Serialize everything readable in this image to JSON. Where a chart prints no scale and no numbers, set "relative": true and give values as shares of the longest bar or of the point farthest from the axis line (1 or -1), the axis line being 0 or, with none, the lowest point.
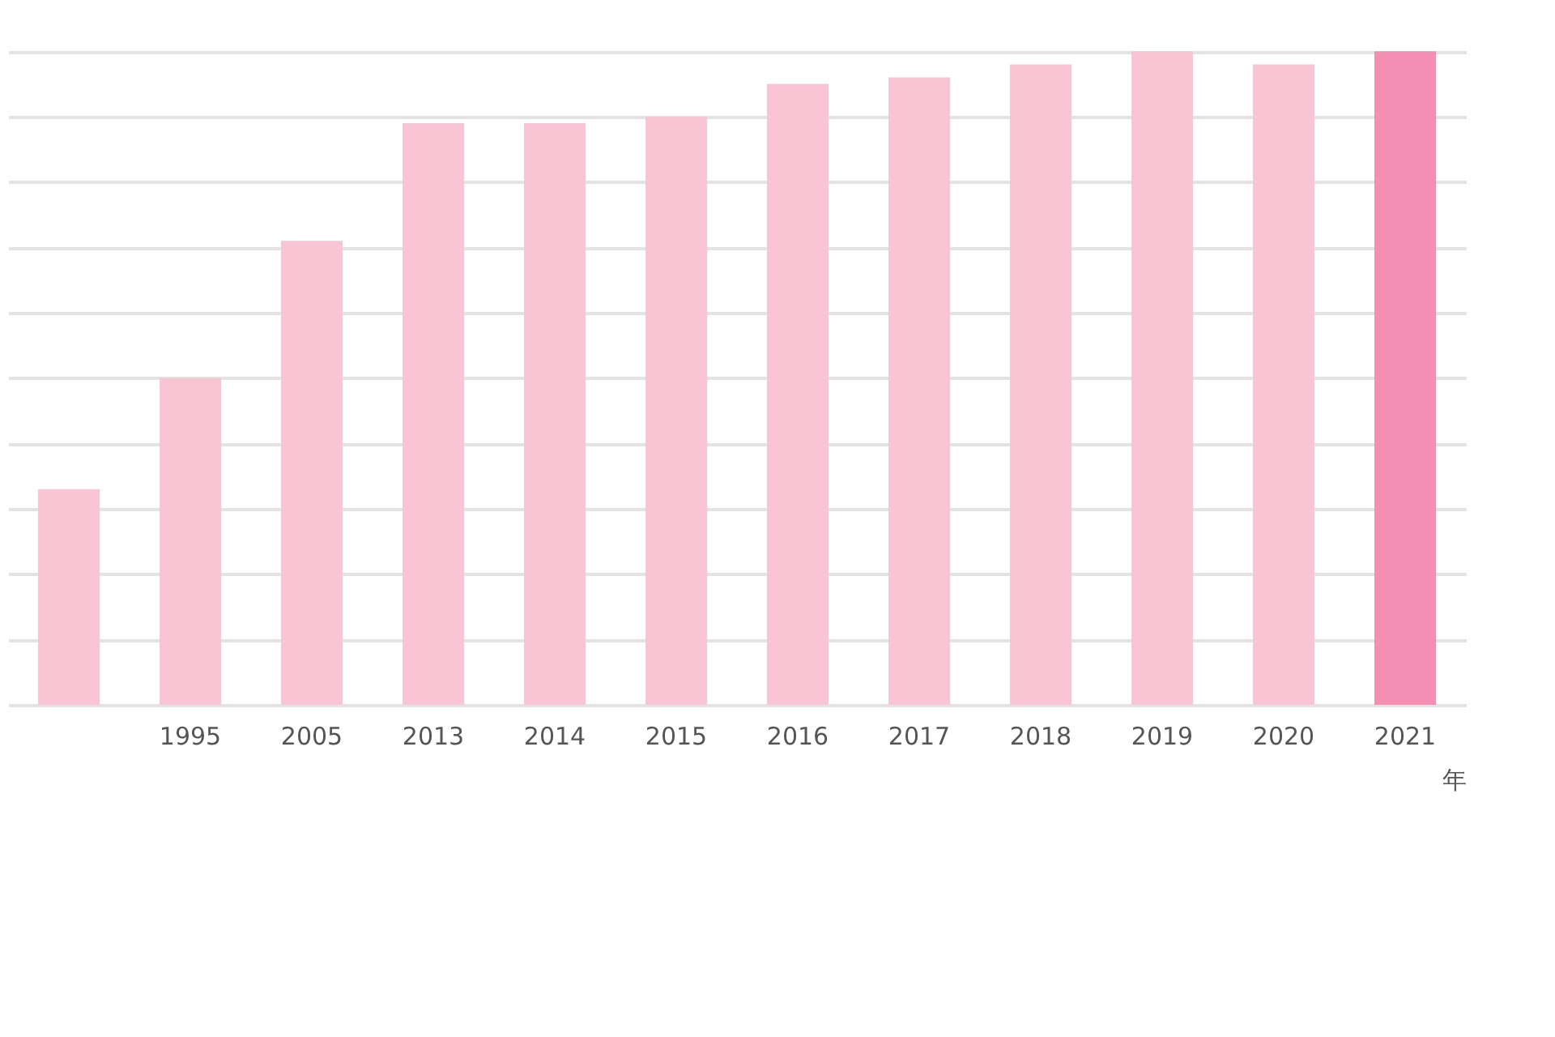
{
  "chart_data": {
    "type": "bar",
    "relative": true,
    "xlabel": "年",
    "grid": "y",
    "categories": [
      null,
      "1995",
      "2005",
      "2013",
      "2014",
      "2015",
      "2016",
      "2017",
      "2018",
      "2019",
      "2020",
      "2021"
    ],
    "values": [
      0.33,
      0.5,
      0.71,
      0.89,
      0.89,
      0.9,
      0.95,
      0.96,
      0.98,
      1,
      0.98,
      1
    ],
    "colors": [
      "#f9c4d4",
      "#f9c4d4",
      "#f9c4d4",
      "#f9c4d4",
      "#f9c4d4",
      "#f9c4d4",
      "#f9c4d4",
      "#f9c4d4",
      "#f9c4d4",
      "#f9c4d4",
      "#f9c4d4",
      "#f48fb3"
    ]
  }
}
